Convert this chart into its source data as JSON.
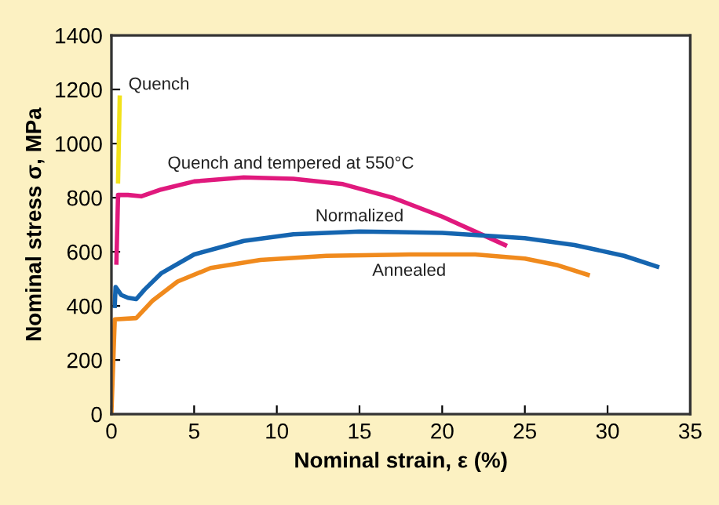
{
  "chart_data": {
    "type": "line",
    "xlabel": "Nominal strain, ε (%)",
    "ylabel": "Nominal stress σ, MPa",
    "xlim": [
      0,
      35
    ],
    "xticks": [
      0,
      5,
      10,
      15,
      20,
      25,
      30,
      35
    ],
    "ylim": [
      0,
      1400
    ],
    "yticks": [
      0,
      200,
      400,
      600,
      800,
      1000,
      1200,
      1400
    ],
    "grid": false,
    "legend": false,
    "marker": "none",
    "line_style": "solid",
    "series": [
      {
        "name": "Quench",
        "color": "#f2e21a",
        "x": [
          0.4,
          0.5
        ],
        "values": [
          860,
          1170
        ]
      },
      {
        "name": "Quench and tempered at 550°C",
        "color": "#e0197d",
        "x": [
          0.3,
          0.4,
          1.0,
          1.8,
          3,
          5,
          8,
          11,
          14,
          17,
          20,
          23.8
        ],
        "values": [
          560,
          810,
          810,
          805,
          830,
          860,
          875,
          870,
          850,
          800,
          730,
          625
        ]
      },
      {
        "name": "Normalized",
        "color": "#1565b0",
        "x": [
          0.2,
          0.25,
          0.6,
          1,
          1.5,
          2,
          3,
          5,
          8,
          11,
          15,
          20,
          25,
          28,
          31,
          33
        ],
        "values": [
          400,
          470,
          440,
          430,
          425,
          460,
          520,
          590,
          640,
          665,
          675,
          670,
          650,
          625,
          585,
          545
        ]
      },
      {
        "name": "Annealed",
        "color": "#f08a1d",
        "x": [
          0,
          0.2,
          1.5,
          2.5,
          4,
          6,
          9,
          13,
          18,
          22,
          25,
          27,
          28.8
        ],
        "values": [
          10,
          350,
          355,
          420,
          490,
          540,
          570,
          585,
          590,
          590,
          575,
          550,
          515
        ]
      }
    ]
  }
}
